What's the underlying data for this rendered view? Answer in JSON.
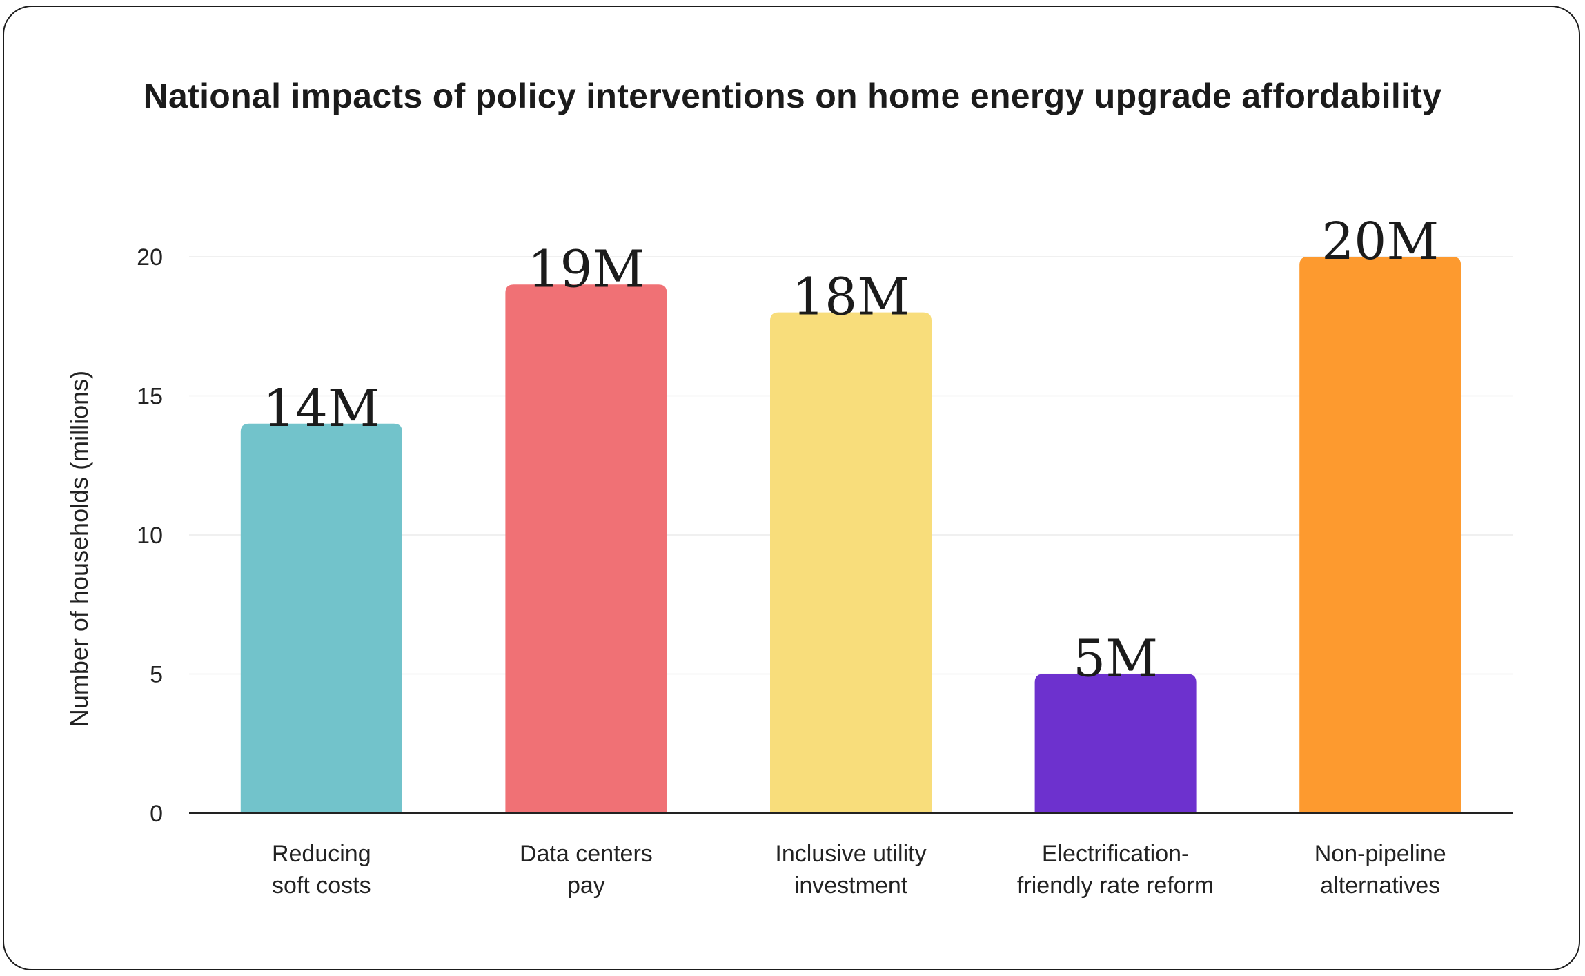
{
  "chart_data": {
    "type": "bar",
    "title": "National impacts of policy interventions on home energy upgrade affordability",
    "ylabel": "Number of households (millions)",
    "xlabel": "",
    "ylim": [
      0,
      20
    ],
    "yticks": [
      0,
      5,
      10,
      15,
      20
    ],
    "grid": true,
    "categories": [
      [
        "Reducing",
        "soft costs"
      ],
      [
        "Data centers",
        "pay"
      ],
      [
        "Inclusive utility",
        "investment"
      ],
      [
        "Electrification-",
        "friendly rate reform"
      ],
      [
        "Non-pipeline",
        "alternatives"
      ]
    ],
    "values": [
      14,
      19,
      18,
      5,
      20
    ],
    "data_labels": [
      "14M",
      "19M",
      "18M",
      "5M",
      "20M"
    ],
    "colors": [
      "#72c3cb",
      "#f07175",
      "#f8dd7b",
      "#6d31ce",
      "#fd9a2f"
    ]
  }
}
